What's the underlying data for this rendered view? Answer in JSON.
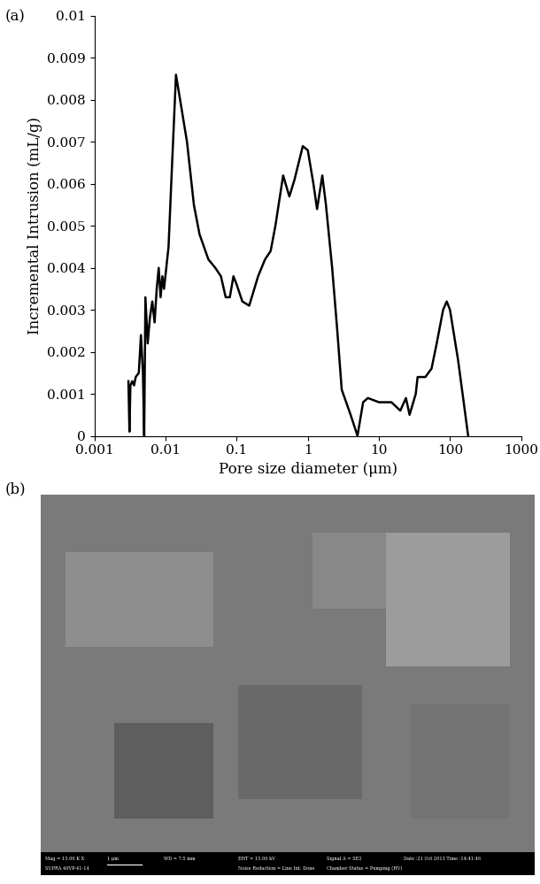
{
  "chart_data": {
    "type": "line",
    "panel_label": "(a)",
    "x_label": "Pore size diameter (μm)",
    "y_label": "Incremental Intrusion (mL/g)",
    "log": "x",
    "color": "#000000",
    "x": [
      0.003,
      0.0031,
      0.0032,
      0.0034,
      0.0036,
      0.0038,
      0.0042,
      0.0045,
      0.0048,
      0.005,
      0.0052,
      0.0056,
      0.006,
      0.0065,
      0.007,
      0.0075,
      0.008,
      0.0085,
      0.009,
      0.0095,
      0.011,
      0.012,
      0.014,
      0.016,
      0.02,
      0.025,
      0.03,
      0.04,
      0.05,
      0.06,
      0.07,
      0.08,
      0.09,
      0.1,
      0.12,
      0.15,
      0.2,
      0.25,
      0.3,
      0.35,
      0.45,
      0.55,
      0.65,
      0.85,
      1.0,
      1.2,
      1.35,
      1.6,
      1.8,
      2.2,
      2.6,
      3,
      4,
      5,
      6,
      7,
      10,
      15,
      20,
      24,
      27,
      33,
      35,
      45,
      55,
      65,
      80,
      90,
      100,
      130,
      180
    ],
    "values": [
      0.0013,
      0.0001,
      0.0012,
      0.0013,
      0.0012,
      0.0014,
      0.0015,
      0.0024,
      0.0015,
      0.0,
      0.0033,
      0.0022,
      0.0028,
      0.0032,
      0.0027,
      0.0035,
      0.004,
      0.0033,
      0.0038,
      0.0035,
      0.0045,
      0.006,
      0.0086,
      0.008,
      0.007,
      0.0055,
      0.0048,
      0.0042,
      0.004,
      0.0038,
      0.0033,
      0.0033,
      0.0038,
      0.0036,
      0.0032,
      0.0031,
      0.0038,
      0.0042,
      0.0044,
      0.005,
      0.0062,
      0.0057,
      0.0061,
      0.0069,
      0.0068,
      0.006,
      0.0054,
      0.0062,
      0.0055,
      0.004,
      0.0025,
      0.0011,
      0.0005,
      0.0,
      0.0008,
      0.0009,
      0.0008,
      0.0008,
      0.0006,
      0.0009,
      0.0005,
      0.001,
      0.0014,
      0.0014,
      0.0016,
      0.0022,
      0.003,
      0.0032,
      0.003,
      0.0018,
      0.0
    ],
    "xlim": [
      0.001,
      1000
    ],
    "xticks": [
      0.001,
      0.01,
      0.1,
      1,
      10,
      100,
      1000
    ],
    "ylim": [
      0,
      0.01
    ],
    "yticks": [
      0,
      0.001,
      0.002,
      0.003,
      0.004,
      0.005,
      0.006,
      0.007,
      0.008,
      0.009,
      0.01
    ]
  },
  "image": {
    "panel_label": "(b)",
    "info_bar": [
      [
        "Mag = 15.00 K X",
        "1 μm",
        "WD = 7.5 mm",
        "EHT = 15.00 kV",
        "Signal A = SE2",
        "Date :21 Oct 2013 Time :14:41:46"
      ],
      [
        "SUPRA 40VP-41-14",
        "Noise Reduction = Line Int. Done",
        "Chamber Status = Pumping (HV)"
      ]
    ]
  }
}
